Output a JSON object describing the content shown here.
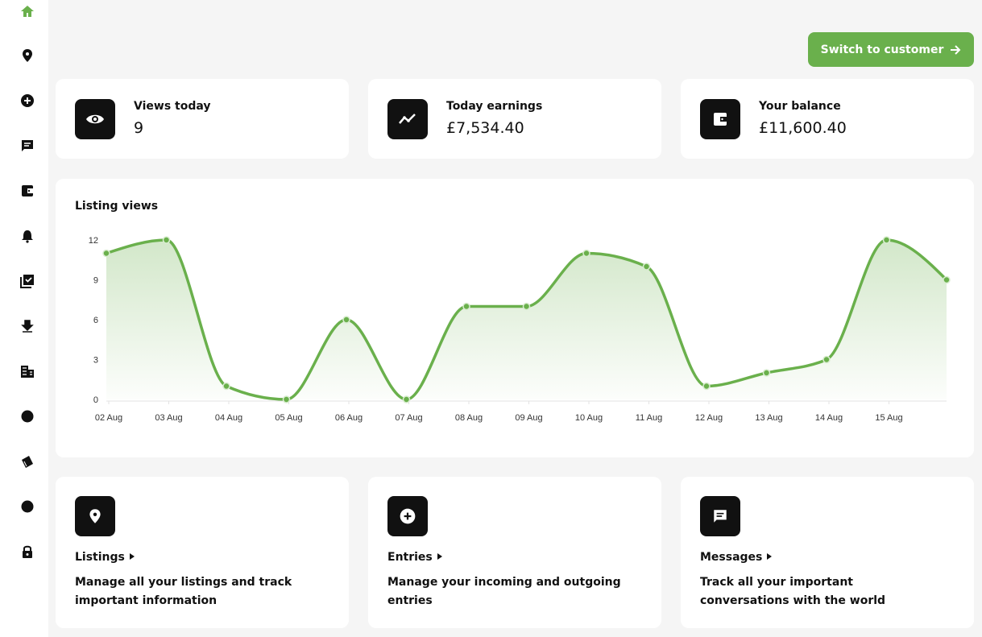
{
  "header": {
    "button": "Switch to customer"
  },
  "stats": [
    {
      "label": "Views today",
      "value": "9"
    },
    {
      "label": "Today earnings",
      "value": "£7,534.40"
    },
    {
      "label": "Your balance",
      "value": "£11,600.40"
    }
  ],
  "chart_data": {
    "type": "line",
    "title": "Listing views",
    "categories": [
      "02 Aug",
      "03 Aug",
      "04 Aug",
      "05 Aug",
      "06 Aug",
      "07 Aug",
      "08 Aug",
      "09 Aug",
      "10 Aug",
      "11 Aug",
      "12 Aug",
      "13 Aug",
      "14 Aug",
      "15 Aug",
      null
    ],
    "values": [
      11,
      12,
      1,
      0,
      6,
      0,
      7,
      7,
      11,
      10,
      1,
      2,
      3,
      12,
      9
    ],
    "color": "#6ab04c",
    "ylim": [
      0,
      12
    ],
    "yticks": [
      0,
      3,
      6,
      9,
      12
    ]
  },
  "cards": [
    {
      "title": "Listings",
      "description": "Manage all your listings and track important information"
    },
    {
      "title": "Entries",
      "description": "Manage your incoming and outgoing entries"
    },
    {
      "title": "Messages",
      "description": "Track all your important conversations with the world"
    }
  ]
}
